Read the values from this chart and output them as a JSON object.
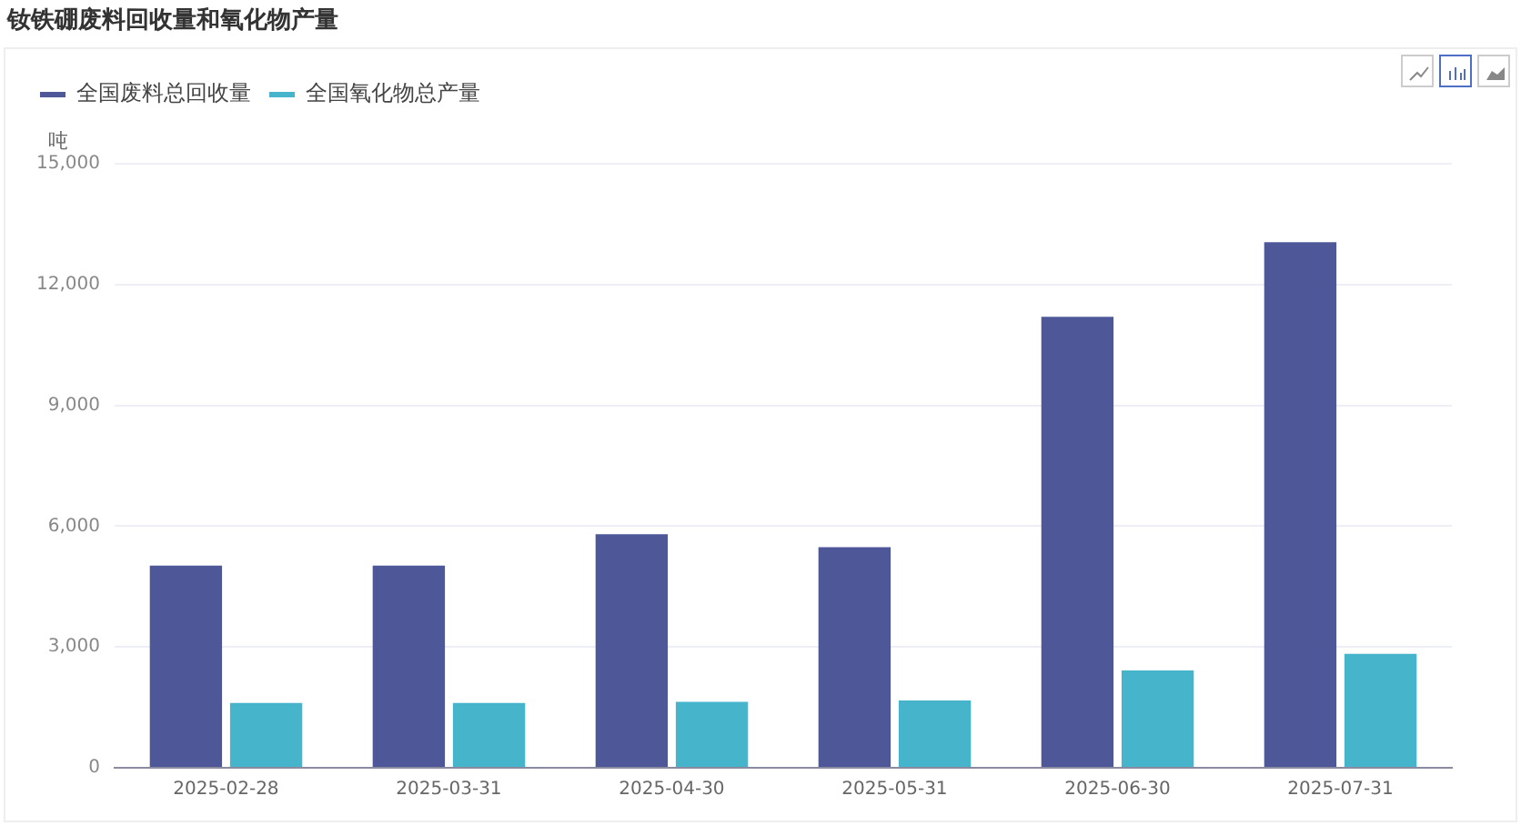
{
  "chart_data": {
    "type": "bar",
    "title": "钕铁硼废料回收量和氧化物产量",
    "ylabel": "吨",
    "categories": [
      "2025-02-28",
      "2025-03-31",
      "2025-04-30",
      "2025-05-31",
      "2025-06-30",
      "2025-07-31"
    ],
    "series": [
      {
        "name": "全国废料总回收量",
        "color": "#4e5898",
        "values": [
          5020,
          5020,
          5800,
          5480,
          11200,
          13050
        ]
      },
      {
        "name": "全国氧化物总产量",
        "color": "#46b4cb",
        "values": [
          1610,
          1610,
          1640,
          1670,
          2420,
          2830
        ]
      }
    ],
    "ylim": [
      0,
      15000
    ],
    "yticks": [
      0,
      {
        "value": 3000,
        "label": "3,000"
      },
      {
        "value": 6000,
        "label": "6,000"
      },
      {
        "value": 9000,
        "label": "9,000"
      },
      {
        "value": 12000,
        "label": "12,000"
      },
      {
        "value": 15000,
        "label": "15,000"
      }
    ],
    "grid": "y",
    "legend": "top left"
  }
}
